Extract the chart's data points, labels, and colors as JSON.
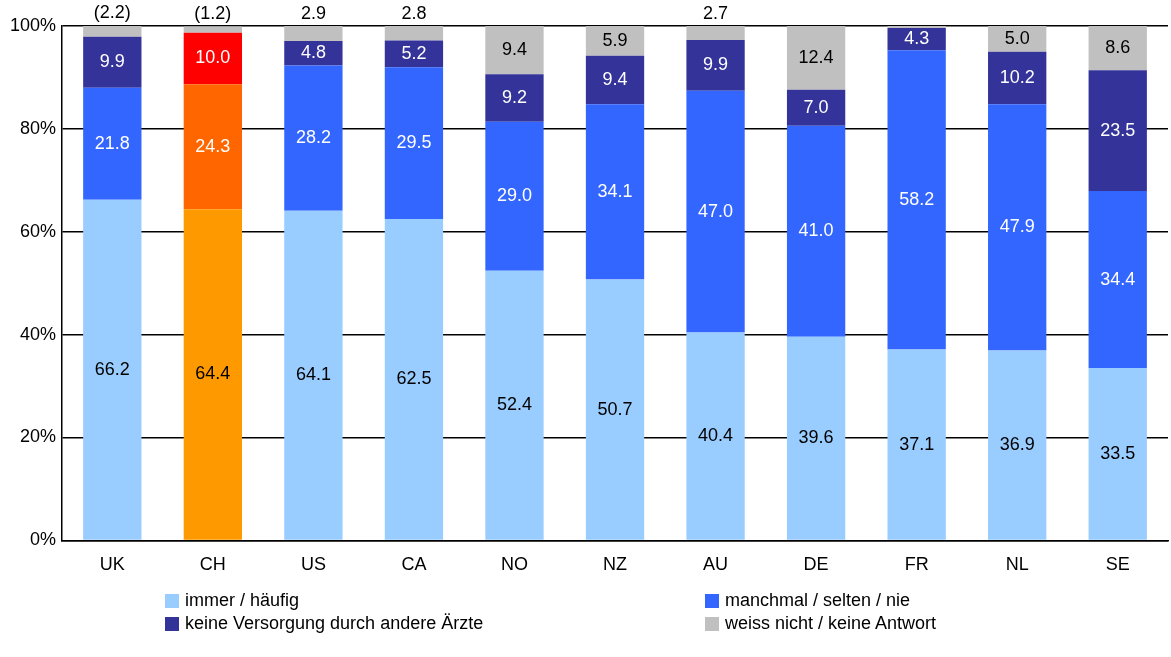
{
  "chart_data": {
    "type": "bar",
    "stacked": true,
    "categories": [
      "UK",
      "CH",
      "US",
      "CA",
      "NO",
      "NZ",
      "AU",
      "DE",
      "FR",
      "NL",
      "SE"
    ],
    "ylim": [
      0,
      100
    ],
    "yticks": [
      {
        "value": 0,
        "label": "0%"
      },
      {
        "value": 20,
        "label": "20%"
      },
      {
        "value": 40,
        "label": "40%"
      },
      {
        "value": 60,
        "label": "60%"
      },
      {
        "value": 80,
        "label": "80%"
      },
      {
        "value": 100,
        "label": "100%"
      }
    ],
    "grid": "y",
    "legend": "bottom",
    "series": [
      {
        "name": "immer / häufig",
        "color": "#99ccff",
        "colors": [
          "#99ccff",
          "#ff9900",
          "#99ccff",
          "#99ccff",
          "#99ccff",
          "#99ccff",
          "#99ccff",
          "#99ccff",
          "#99ccff",
          "#99ccff",
          "#99ccff"
        ],
        "values": [
          66.2,
          64.4,
          64.1,
          62.5,
          52.4,
          50.7,
          40.4,
          39.6,
          37.1,
          36.9,
          33.5
        ],
        "value_labels": [
          "66.2",
          "64.4",
          "64.1",
          "62.5",
          "52.4",
          "50.7",
          "40.4",
          "39.6",
          "37.1",
          "36.9",
          "33.5"
        ]
      },
      {
        "name": "manchmal / selten / nie",
        "color": "#3366ff",
        "colors": [
          "#3366ff",
          "#ff6600",
          "#3366ff",
          "#3366ff",
          "#3366ff",
          "#3366ff",
          "#3366ff",
          "#3366ff",
          "#3366ff",
          "#3366ff",
          "#3366ff"
        ],
        "values": [
          21.8,
          24.3,
          28.2,
          29.5,
          29.0,
          34.1,
          47.0,
          41.0,
          58.2,
          47.9,
          34.4
        ],
        "value_labels": [
          "21.8",
          "24.3",
          "28.2",
          "29.5",
          "29.0",
          "34.1",
          "47.0",
          "41.0",
          "58.2",
          "47.9",
          "34.4"
        ]
      },
      {
        "name": "keine Versorgung durch andere Ärzte",
        "color": "#333399",
        "colors": [
          "#333399",
          "#ff0000",
          "#333399",
          "#333399",
          "#333399",
          "#333399",
          "#333399",
          "#333399",
          "#333399",
          "#333399",
          "#333399"
        ],
        "values": [
          9.9,
          10.0,
          4.8,
          5.2,
          9.2,
          9.4,
          9.9,
          7.0,
          4.3,
          10.2,
          23.5
        ],
        "value_labels": [
          "9.9",
          "10.0",
          "4.8",
          "5.2",
          "9.2",
          "9.4",
          "9.9",
          "7.0",
          "4.3",
          "10.2",
          "23.5"
        ]
      },
      {
        "name": "weiss nicht / keine Antwort",
        "color": "#c0c0c0",
        "values": [
          2.2,
          1.2,
          2.9,
          2.8,
          9.4,
          5.9,
          2.7,
          12.4,
          0.4,
          5.0,
          8.6
        ],
        "value_labels": [
          "(2.2)",
          "(1.2)",
          "2.9",
          "2.8",
          "9.4",
          "5.9",
          "2.7",
          "12.4",
          null,
          "5.0",
          "8.6"
        ]
      }
    ]
  }
}
